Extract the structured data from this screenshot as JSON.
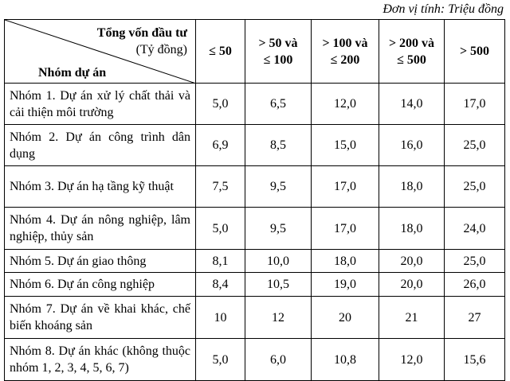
{
  "unit_note": "Đơn vị tính: Triệu đồng",
  "table": {
    "corner": {
      "top": "Tổng vốn đầu tư",
      "top_unit": "(Tỷ đồng)",
      "bottom": "Nhóm dự án"
    },
    "columns": [
      [
        "≤ 50"
      ],
      [
        "> 50 và",
        "≤ 100"
      ],
      [
        "> 100 và",
        "≤ 200"
      ],
      [
        "> 200 và",
        "≤ 500"
      ],
      [
        "> 500"
      ]
    ],
    "rows": [
      [
        "Nhóm 1. Dự án xử lý chất thải và cải thiện môi trường",
        "5,0",
        "6,5",
        "12,0",
        "14,0",
        "17,0"
      ],
      [
        "Nhóm 2. Dự án công trình dân dụng",
        "6,9",
        "8,5",
        "15,0",
        "16,0",
        "25,0"
      ],
      [
        "Nhóm 3. Dự án hạ tầng kỹ thuật",
        "7,5",
        "9,5",
        "17,0",
        "18,0",
        "25,0"
      ],
      [
        "Nhóm 4. Dự án nông nghiệp, lâm nghiệp, thủy sản",
        "5,0",
        "9,5",
        "17,0",
        "18,0",
        "24,0"
      ],
      [
        "Nhóm 5. Dự án giao thông",
        "8,1",
        "10,0",
        "18,0",
        "20,0",
        "25,0"
      ],
      [
        "Nhóm 6. Dự án công nghiệp",
        "8,4",
        "10,5",
        "19,0",
        "20,0",
        "26,0"
      ],
      [
        "Nhóm 7. Dự án về khai khác, chế biến khoáng sản",
        "10",
        "12",
        "20",
        "21",
        "27"
      ],
      [
        "Nhóm 8. Dự án khác (không thuộc nhóm 1, 2, 3, 4, 5, 6, 7)",
        "5,0",
        "6,0",
        "10,8",
        "12,0",
        "15,6"
      ]
    ]
  }
}
